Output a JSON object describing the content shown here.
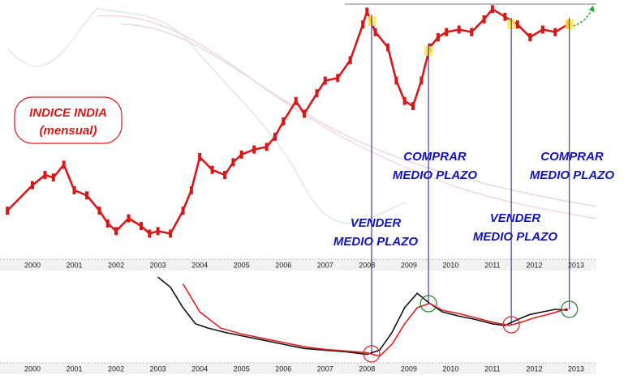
{
  "chart_data": [
    {
      "type": "line",
      "title": "INDICE INDIA",
      "subtitle": "(mensual)",
      "color": "#d81818",
      "x": [
        1999.4,
        2000.0,
        2000.3,
        2000.5,
        2000.75,
        2001.0,
        2001.3,
        2001.6,
        2001.8,
        2002.0,
        2002.3,
        2002.6,
        2002.8,
        2003.0,
        2003.3,
        2003.6,
        2003.8,
        2004.0,
        2004.3,
        2004.6,
        2004.8,
        2005.0,
        2005.3,
        2005.6,
        2005.8,
        2006.0,
        2006.3,
        2006.5,
        2006.8,
        2007.0,
        2007.3,
        2007.6,
        2007.9,
        2008.0,
        2008.2,
        2008.5,
        2008.7,
        2008.9,
        2009.1,
        2009.3,
        2009.5,
        2009.7,
        2009.9,
        2010.2,
        2010.5,
        2010.8,
        2011.0,
        2011.3,
        2011.6,
        2011.9,
        2012.2,
        2012.5,
        2012.8
      ],
      "values": [
        19,
        29,
        33,
        32,
        37,
        27,
        25,
        19,
        14,
        11,
        16,
        13,
        10,
        11,
        10,
        19,
        27,
        40,
        35,
        33,
        38,
        41,
        43,
        44,
        48,
        54,
        62,
        57,
        65,
        70,
        71,
        78,
        92,
        97,
        89,
        83,
        70,
        62,
        60,
        70,
        83,
        87,
        89,
        90,
        89,
        94,
        98,
        95,
        92,
        87,
        90,
        89,
        92
      ],
      "xlim": [
        1999.3,
        2013.9
      ],
      "ylim": [
        0,
        100
      ],
      "xticks": [
        2000,
        2001,
        2002,
        2003,
        2004,
        2005,
        2006,
        2007,
        2008,
        2009,
        2010,
        2011,
        2012,
        2013
      ],
      "signals": [
        {
          "x": 2008.11,
          "text": [
            "VENDER",
            "MEDIO PLAZO"
          ],
          "color": "#e02020"
        },
        {
          "x": 2009.47,
          "text": [
            "COMPRAR",
            "MEDIO PLAZO"
          ],
          "color": "#2a7a2a"
        },
        {
          "x": 2011.45,
          "text": [
            "VENDER",
            "MEDIO PLAZO"
          ],
          "color": "#e02020"
        },
        {
          "x": 2012.84,
          "text": [
            "COMPRAR",
            "MEDIO PLAZO"
          ],
          "color": "#2a7a2a"
        }
      ]
    },
    {
      "type": "line",
      "xlim": [
        1999.3,
        2013.9
      ],
      "ylim": [
        0,
        100
      ],
      "xticks": [
        2000,
        2001,
        2002,
        2003,
        2004,
        2005,
        2006,
        2007,
        2008,
        2009,
        2010,
        2011,
        2012,
        2013
      ],
      "series": [
        {
          "color": "#111111",
          "x": [
            2003.0,
            2003.3,
            2003.6,
            2003.9,
            2004.2,
            2004.6,
            2005.0,
            2005.5,
            2006.0,
            2006.5,
            2007.0,
            2007.5,
            2008.0,
            2008.3,
            2008.6,
            2008.9,
            2009.2,
            2009.5,
            2009.8,
            2010.2,
            2010.6,
            2011.0,
            2011.3,
            2011.6,
            2011.9,
            2012.2,
            2012.5,
            2012.8
          ],
          "values": [
            98,
            86,
            62,
            43,
            38,
            33,
            29,
            24,
            19,
            14,
            12,
            10,
            7,
            12,
            33,
            62,
            79,
            67,
            57,
            52,
            48,
            43,
            41,
            48,
            54,
            57,
            60,
            59
          ]
        },
        {
          "color": "#e02020",
          "x": [
            2003.6,
            2004.0,
            2004.5,
            2005.0,
            2005.5,
            2006.0,
            2006.5,
            2007.0,
            2007.5,
            2008.0,
            2008.3,
            2008.6,
            2008.9,
            2009.2,
            2009.5,
            2009.8,
            2010.2,
            2010.6,
            2011.0,
            2011.4,
            2011.7,
            2012.0,
            2012.4,
            2012.8
          ],
          "values": [
            90,
            57,
            38,
            31,
            26,
            21,
            16,
            13,
            11,
            9,
            5,
            19,
            43,
            62,
            67,
            59,
            55,
            50,
            45,
            41,
            45,
            50,
            55,
            61
          ]
        }
      ]
    }
  ]
}
